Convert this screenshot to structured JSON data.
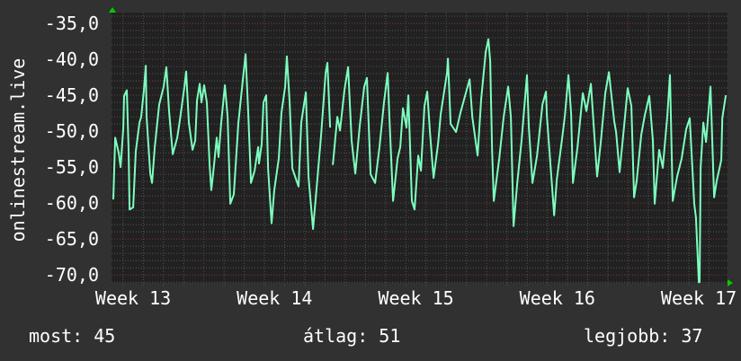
{
  "chart_data": {
    "type": "line",
    "ylabel": "onlinestream.live",
    "xlabel": "",
    "xlim": [
      12.847,
      17.203
    ],
    "ylim": [
      -71.1,
      -33.5
    ],
    "x_ticks": [
      13,
      14,
      15,
      16,
      17
    ],
    "x_tick_labels": [
      "Week 13",
      "Week 14",
      "Week 15",
      "Week 16",
      "Week 17"
    ],
    "y_ticks": [
      -35,
      -40,
      -45,
      -50,
      -55,
      -60,
      -65,
      -70
    ],
    "y_tick_labels": [
      "-35,0",
      "-40,0",
      "-45,0",
      "-50,0",
      "-55,0",
      "-60,0",
      "-65,0",
      "-70,0"
    ],
    "grid": true,
    "line_color": "#7dffbe",
    "series": [
      {
        "points": [
          [
            12.86,
            -59.5
          ],
          [
            12.873,
            -50.9
          ],
          [
            12.898,
            -53
          ],
          [
            12.911,
            -55
          ],
          [
            12.93,
            -49.6
          ],
          [
            12.936,
            -45.1
          ],
          [
            12.955,
            -44.3
          ],
          [
            12.968,
            -52.6
          ],
          [
            12.975,
            -60.9
          ],
          [
            13.0,
            -60.6
          ],
          [
            13.019,
            -52.8
          ],
          [
            13.045,
            -48.8
          ],
          [
            13.057,
            -48
          ],
          [
            13.076,
            -44.3
          ],
          [
            13.089,
            -40.9
          ],
          [
            13.095,
            -48
          ],
          [
            13.121,
            -55.9
          ],
          [
            13.134,
            -57.2
          ],
          [
            13.153,
            -52.2
          ],
          [
            13.184,
            -46.3
          ],
          [
            13.216,
            -43.8
          ],
          [
            13.235,
            -41.1
          ],
          [
            13.254,
            -47.2
          ],
          [
            13.28,
            -53.2
          ],
          [
            13.312,
            -50.9
          ],
          [
            13.331,
            -48.4
          ],
          [
            13.363,
            -43.8
          ],
          [
            13.375,
            -41.7
          ],
          [
            13.394,
            -48.8
          ],
          [
            13.42,
            -52.6
          ],
          [
            13.439,
            -51.3
          ],
          [
            13.452,
            -45.7
          ],
          [
            13.471,
            -43.4
          ],
          [
            13.483,
            -46
          ],
          [
            13.502,
            -43.6
          ],
          [
            13.521,
            -46
          ],
          [
            13.541,
            -54.7
          ],
          [
            13.553,
            -58.2
          ],
          [
            13.572,
            -54.7
          ],
          [
            13.591,
            -50.9
          ],
          [
            13.604,
            -53.6
          ],
          [
            13.623,
            -48.8
          ],
          [
            13.649,
            -43.6
          ],
          [
            13.668,
            -48
          ],
          [
            13.687,
            -60.1
          ],
          [
            13.712,
            -58.8
          ],
          [
            13.744,
            -48.8
          ],
          [
            13.776,
            -42.8
          ],
          [
            13.795,
            -39.3
          ],
          [
            13.814,
            -47.6
          ],
          [
            13.833,
            -57.2
          ],
          [
            13.859,
            -55.5
          ],
          [
            13.884,
            -52.2
          ],
          [
            13.89,
            -54.5
          ],
          [
            13.909,
            -51.8
          ],
          [
            13.922,
            -46
          ],
          [
            13.941,
            -45
          ],
          [
            13.954,
            -55.2
          ],
          [
            13.979,
            -62.8
          ],
          [
            13.998,
            -58.2
          ],
          [
            14.03,
            -53.8
          ],
          [
            14.049,
            -47.4
          ],
          [
            14.075,
            -43.8
          ],
          [
            14.087,
            -39.6
          ],
          [
            14.107,
            -46
          ],
          [
            14.126,
            -55.2
          ],
          [
            14.17,
            -57.7
          ],
          [
            14.189,
            -48.8
          ],
          [
            14.221,
            -44.6
          ],
          [
            14.24,
            -56.4
          ],
          [
            14.272,
            -63.6
          ],
          [
            14.304,
            -56.4
          ],
          [
            14.329,
            -50.5
          ],
          [
            14.361,
            -41.9
          ],
          [
            14.374,
            -40.5
          ],
          [
            14.393,
            -49.5
          ],
          null,
          [
            14.412,
            -54.7
          ],
          [
            14.444,
            -48
          ],
          [
            14.463,
            -49.9
          ],
          [
            14.494,
            -44.3
          ],
          [
            14.52,
            -41.1
          ],
          [
            14.545,
            -51.3
          ],
          [
            14.571,
            -55.9
          ],
          [
            14.603,
            -49.2
          ],
          [
            14.634,
            -43.8
          ],
          [
            14.653,
            -42.6
          ],
          [
            14.679,
            -56
          ],
          [
            14.711,
            -57.2
          ],
          [
            14.742,
            -52.2
          ],
          [
            14.774,
            -46
          ],
          [
            14.8,
            -41.9
          ],
          [
            14.812,
            -48
          ],
          [
            14.838,
            -59.7
          ],
          [
            14.87,
            -53.8
          ],
          [
            14.889,
            -52.2
          ],
          [
            14.908,
            -46.8
          ],
          [
            14.933,
            -49.5
          ],
          [
            14.946,
            -45
          ],
          [
            14.971,
            -59.7
          ],
          [
            14.99,
            -60.9
          ],
          [
            15.016,
            -53.4
          ],
          [
            15.035,
            -55.5
          ],
          [
            15.06,
            -46.5
          ],
          [
            15.08,
            -44.5
          ],
          [
            15.099,
            -50.1
          ],
          [
            15.124,
            -56.5
          ],
          [
            15.156,
            -51.8
          ],
          [
            15.175,
            -47.6
          ],
          [
            15.22,
            -41.8
          ],
          [
            15.226,
            -39.9
          ],
          [
            15.245,
            -49
          ],
          [
            15.283,
            -50.1
          ],
          [
            15.315,
            -47.4
          ],
          [
            15.347,
            -45.1
          ],
          [
            15.379,
            -42.8
          ],
          [
            15.398,
            -48
          ],
          [
            15.436,
            -53.4
          ],
          [
            15.461,
            -45.5
          ],
          [
            15.493,
            -39
          ],
          [
            15.512,
            -37.2
          ],
          [
            15.525,
            -40.3
          ],
          [
            15.538,
            -52.6
          ],
          [
            15.55,
            -59.7
          ],
          [
            15.589,
            -53.8
          ],
          [
            15.62,
            -48
          ],
          [
            15.652,
            -43.8
          ],
          [
            15.671,
            -48
          ],
          [
            15.69,
            -63.2
          ],
          [
            15.716,
            -57.2
          ],
          [
            15.747,
            -51.3
          ],
          [
            15.785,
            -42.2
          ],
          [
            15.798,
            -49.5
          ],
          [
            15.824,
            -57.2
          ],
          [
            15.856,
            -53.4
          ],
          [
            15.894,
            -46.3
          ],
          [
            15.919,
            -44.5
          ],
          [
            15.926,
            -48
          ],
          [
            15.964,
            -58.2
          ],
          [
            15.977,
            -61.7
          ],
          [
            15.996,
            -56.7
          ],
          [
            16.034,
            -50.9
          ],
          [
            16.053,
            -47.8
          ],
          [
            16.078,
            -42.2
          ],
          [
            16.097,
            -47.6
          ],
          [
            16.11,
            -57.2
          ],
          [
            16.142,
            -52.2
          ],
          [
            16.18,
            -44.7
          ],
          [
            16.205,
            -47.2
          ],
          [
            16.237,
            -43.4
          ],
          [
            16.262,
            -50.7
          ],
          [
            16.281,
            -56.3
          ],
          [
            16.307,
            -51.5
          ],
          [
            16.339,
            -44.7
          ],
          [
            16.364,
            -41.8
          ],
          [
            16.402,
            -48.6
          ],
          [
            16.415,
            -50.1
          ],
          [
            16.44,
            -55.7
          ],
          [
            16.478,
            -48
          ],
          [
            16.497,
            -44
          ],
          [
            16.523,
            -46.5
          ],
          [
            16.542,
            -59.2
          ],
          [
            16.561,
            -56.9
          ],
          [
            16.593,
            -50.5
          ],
          [
            16.618,
            -47.8
          ],
          [
            16.65,
            -45.1
          ],
          [
            16.675,
            -51.3
          ],
          [
            16.688,
            -60.1
          ],
          [
            16.72,
            -52.6
          ],
          [
            16.745,
            -55.1
          ],
          [
            16.777,
            -48
          ],
          [
            16.796,
            -42.2
          ],
          [
            16.816,
            -59.7
          ],
          [
            16.847,
            -56.3
          ],
          [
            16.879,
            -53.8
          ],
          [
            16.911,
            -49.7
          ],
          [
            16.936,
            -48.2
          ],
          [
            16.968,
            -60.1
          ],
          [
            16.98,
            -62
          ],
          [
            17.0,
            -71
          ],
          [
            17.006,
            -71
          ],
          [
            17.013,
            -55.1
          ],
          [
            17.032,
            -48.8
          ],
          [
            17.051,
            -51.5
          ],
          [
            17.083,
            -43.8
          ],
          [
            17.108,
            -59.2
          ],
          [
            17.127,
            -56.9
          ],
          [
            17.159,
            -54
          ],
          [
            17.166,
            -48.2
          ],
          [
            17.191,
            -45
          ]
        ]
      }
    ]
  },
  "footer": {
    "current": "most: 45",
    "average": "átlag: 51",
    "best": "legjobb: 37"
  },
  "colors": {
    "background": "#313131",
    "plot_background": "#212121",
    "grid_minor": "#555555",
    "grid_major": "#7a3a3a",
    "axis_arrow": "#00cc00"
  }
}
